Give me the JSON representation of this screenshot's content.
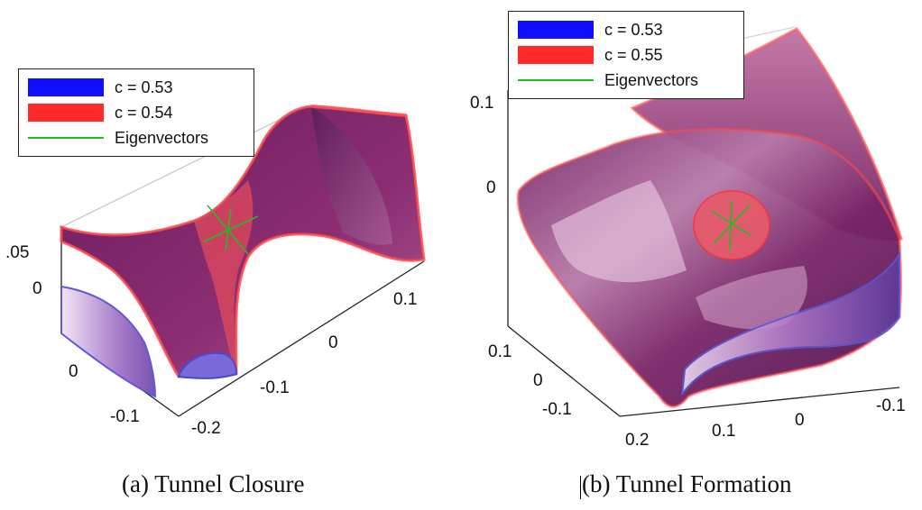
{
  "figures": [
    {
      "id": "a",
      "caption": "(a) Tunnel Closure",
      "legend": [
        {
          "label": "c = 0.53",
          "color": "#1010ff",
          "kind": "patch"
        },
        {
          "label": "c = 0.54",
          "color": "#ff2a2a",
          "kind": "patch"
        },
        {
          "label": "Eigenvectors",
          "color": "#22bb22",
          "kind": "line"
        }
      ],
      "z_ticks": [
        ".05",
        "0"
      ],
      "x_ticks": [
        "0",
        "-0.1"
      ],
      "y_ticks": [
        "0.1",
        "0",
        "-0.1",
        "-0.2"
      ]
    },
    {
      "id": "b",
      "caption": "(b) Tunnel Formation",
      "legend": [
        {
          "label": "c = 0.53",
          "color": "#1010ff",
          "kind": "patch"
        },
        {
          "label": "c = 0.55",
          "color": "#ff2a2a",
          "kind": "patch"
        },
        {
          "label": "Eigenvectors",
          "color": "#22bb22",
          "kind": "line"
        }
      ],
      "z_ticks": [
        "0.1",
        "0"
      ],
      "x_ticks": [
        "0.1",
        "0",
        "-0.1"
      ],
      "y_ticks": [
        "0.2",
        "0.1",
        "0",
        "-0.1"
      ]
    }
  ],
  "colors": {
    "surface_dark": "#5a1a55",
    "surface_mid": "#9a3a7e",
    "surface_light": "#e7c2e2",
    "rim_red": "#ff3030",
    "inner_blue": "#6a6ae8"
  }
}
